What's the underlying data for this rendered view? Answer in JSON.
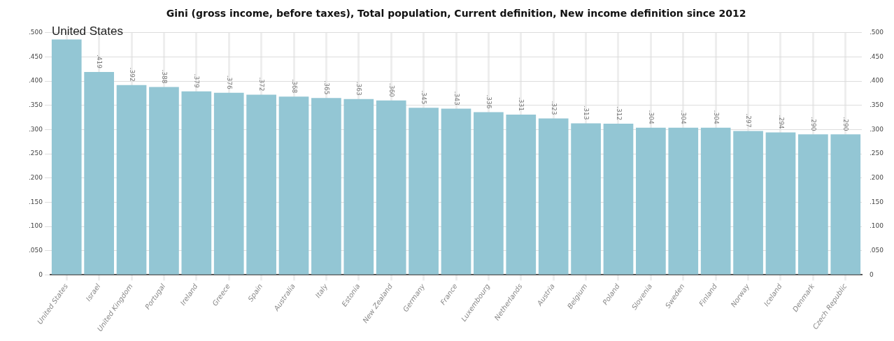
{
  "chart_data": {
    "type": "bar",
    "title": "Gini (gross income, before taxes), Total population, Current definition, New income definition since 2012",
    "categories": [
      "United States",
      "Israel",
      "United Kingdom",
      "Portugal",
      "Ireland",
      "Greece",
      "Spain",
      "Australia",
      "Italy",
      "Estonia",
      "New Zealand",
      "Germany",
      "France",
      "Luxembourg",
      "Netherlands",
      "Austria",
      "Belgium",
      "Poland",
      "Slovenia",
      "Sweden",
      "Finland",
      "Norway",
      "Iceland",
      "Denmark",
      "Czech Republic"
    ],
    "values": [
      0.486,
      0.419,
      0.392,
      0.388,
      0.379,
      0.376,
      0.372,
      0.368,
      0.365,
      0.363,
      0.36,
      0.345,
      0.343,
      0.336,
      0.331,
      0.323,
      0.313,
      0.312,
      0.304,
      0.304,
      0.304,
      0.297,
      0.294,
      0.29,
      0.29
    ],
    "value_labels": [
      null,
      ".419",
      ".392",
      ".388",
      ".379",
      ".376",
      ".372",
      ".368",
      ".365",
      ".363",
      ".360",
      ".345",
      ".343",
      ".336",
      ".331",
      ".323",
      ".313",
      ".312",
      ".304",
      ".304",
      ".304",
      ".297",
      ".294",
      ".290",
      ".290"
    ],
    "color": "#93c6d4",
    "ylim": [
      0,
      0.5
    ],
    "yticks": [
      {
        "value": 0,
        "label": "0"
      },
      {
        "value": 0.05,
        "label": ".050"
      },
      {
        "value": 0.1,
        "label": ".100"
      },
      {
        "value": 0.15,
        "label": ".150"
      },
      {
        "value": 0.2,
        "label": ".200"
      },
      {
        "value": 0.25,
        "label": ".250"
      },
      {
        "value": 0.3,
        "label": ".300"
      },
      {
        "value": 0.35,
        "label": ".350"
      },
      {
        "value": 0.4,
        "label": ".400"
      },
      {
        "value": 0.45,
        "label": ".450"
      },
      {
        "value": 0.5,
        "label": ".500"
      }
    ],
    "y2lim": [
      0,
      0.5
    ],
    "y2ticks": [
      {
        "value": 0,
        "label": "0"
      },
      {
        "value": 0.05,
        "label": ".050"
      },
      {
        "value": 0.1,
        "label": ".100"
      },
      {
        "value": 0.15,
        "label": ".150"
      },
      {
        "value": 0.2,
        "label": ".200"
      },
      {
        "value": 0.25,
        "label": ".250"
      },
      {
        "value": 0.3,
        "label": ".300"
      },
      {
        "value": 0.35,
        "label": ".350"
      },
      {
        "value": 0.4,
        "label": ".400"
      },
      {
        "value": 0.45,
        "label": ".450"
      },
      {
        "value": 0.5,
        "label": ".500"
      }
    ],
    "annotations": [
      {
        "text": "United States",
        "x": "United States",
        "y": 0.486
      }
    ],
    "grid": true
  }
}
